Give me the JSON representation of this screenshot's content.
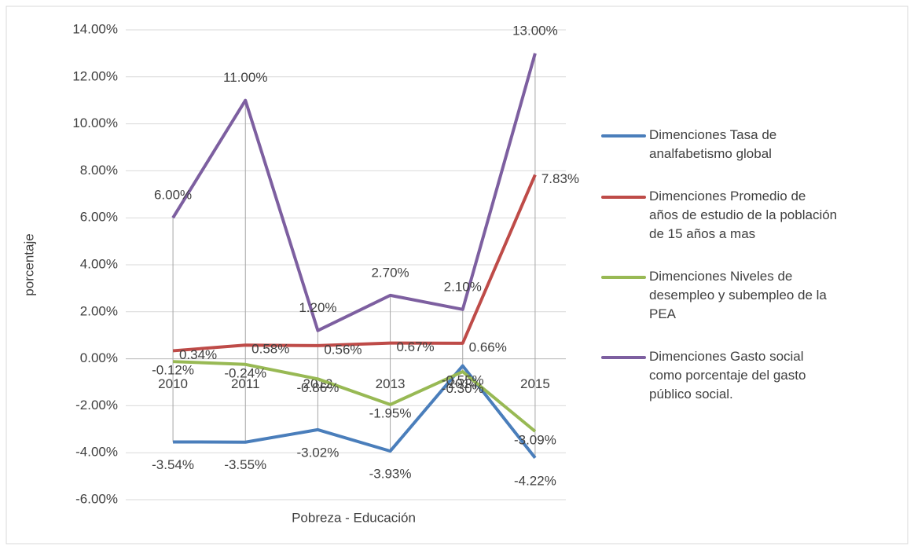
{
  "chart_data": {
    "type": "line",
    "x_label": "Pobreza - Educación",
    "y_label": "porcentaje",
    "categories": [
      "2010",
      "2011",
      "2012",
      "2013",
      "2014",
      "2015"
    ],
    "series": [
      {
        "name": "Dimenciones Tasa de analfabetismo global",
        "color": "#4a7ebb",
        "values": [
          -3.54,
          -3.55,
          -3.02,
          -3.93,
          -0.3,
          -4.22
        ],
        "value_labels": [
          "-3.54%",
          "-3.55%",
          "-3.02%",
          "-3.93%",
          "-0.30%",
          "-4.22%"
        ]
      },
      {
        "name": "Dimenciones Promedio de años de estudio de la población de 15 años a mas",
        "color": "#be4b48",
        "values": [
          0.34,
          0.58,
          0.56,
          0.67,
          0.66,
          7.83
        ],
        "value_labels": [
          "0.34%",
          "0.58%",
          "0.56%",
          "0.67%",
          "0.66%",
          "7.83%"
        ]
      },
      {
        "name": "Dimenciones Niveles de desempleo y subempleo de la PEA",
        "color": "#98b954",
        "values": [
          -0.12,
          -0.24,
          -0.86,
          -1.95,
          -0.55,
          -3.09
        ],
        "value_labels": [
          "-0.12%",
          "-0.24%",
          "-0.86%",
          "-1.95%",
          "-0.55%",
          "-3.09%"
        ]
      },
      {
        "name": "Dimenciones Gasto social como porcentaje del gasto público social.",
        "color": "#7d5fa0",
        "values": [
          6.0,
          11.0,
          1.2,
          2.7,
          2.1,
          13.0
        ],
        "value_labels": [
          "6.00%",
          "11.00%",
          "1.20%",
          "2.70%",
          "2.10%",
          "13.00%"
        ]
      }
    ],
    "ylim": [
      -6,
      14
    ],
    "yticks": [
      {
        "value": -6,
        "label": "-6.00%"
      },
      {
        "value": -4,
        "label": "-4.00%"
      },
      {
        "value": -2,
        "label": "-2.00%"
      },
      {
        "value": 0,
        "label": "0.00%"
      },
      {
        "value": 2,
        "label": "2.00%"
      },
      {
        "value": 4,
        "label": "4.00%"
      },
      {
        "value": 6,
        "label": "6.00%"
      },
      {
        "value": 8,
        "label": "8.00%"
      },
      {
        "value": 10,
        "label": "10.00%"
      },
      {
        "value": 12,
        "label": "12.00%"
      },
      {
        "value": 14,
        "label": "14.00%"
      }
    ],
    "grid": true,
    "legend": "right"
  }
}
